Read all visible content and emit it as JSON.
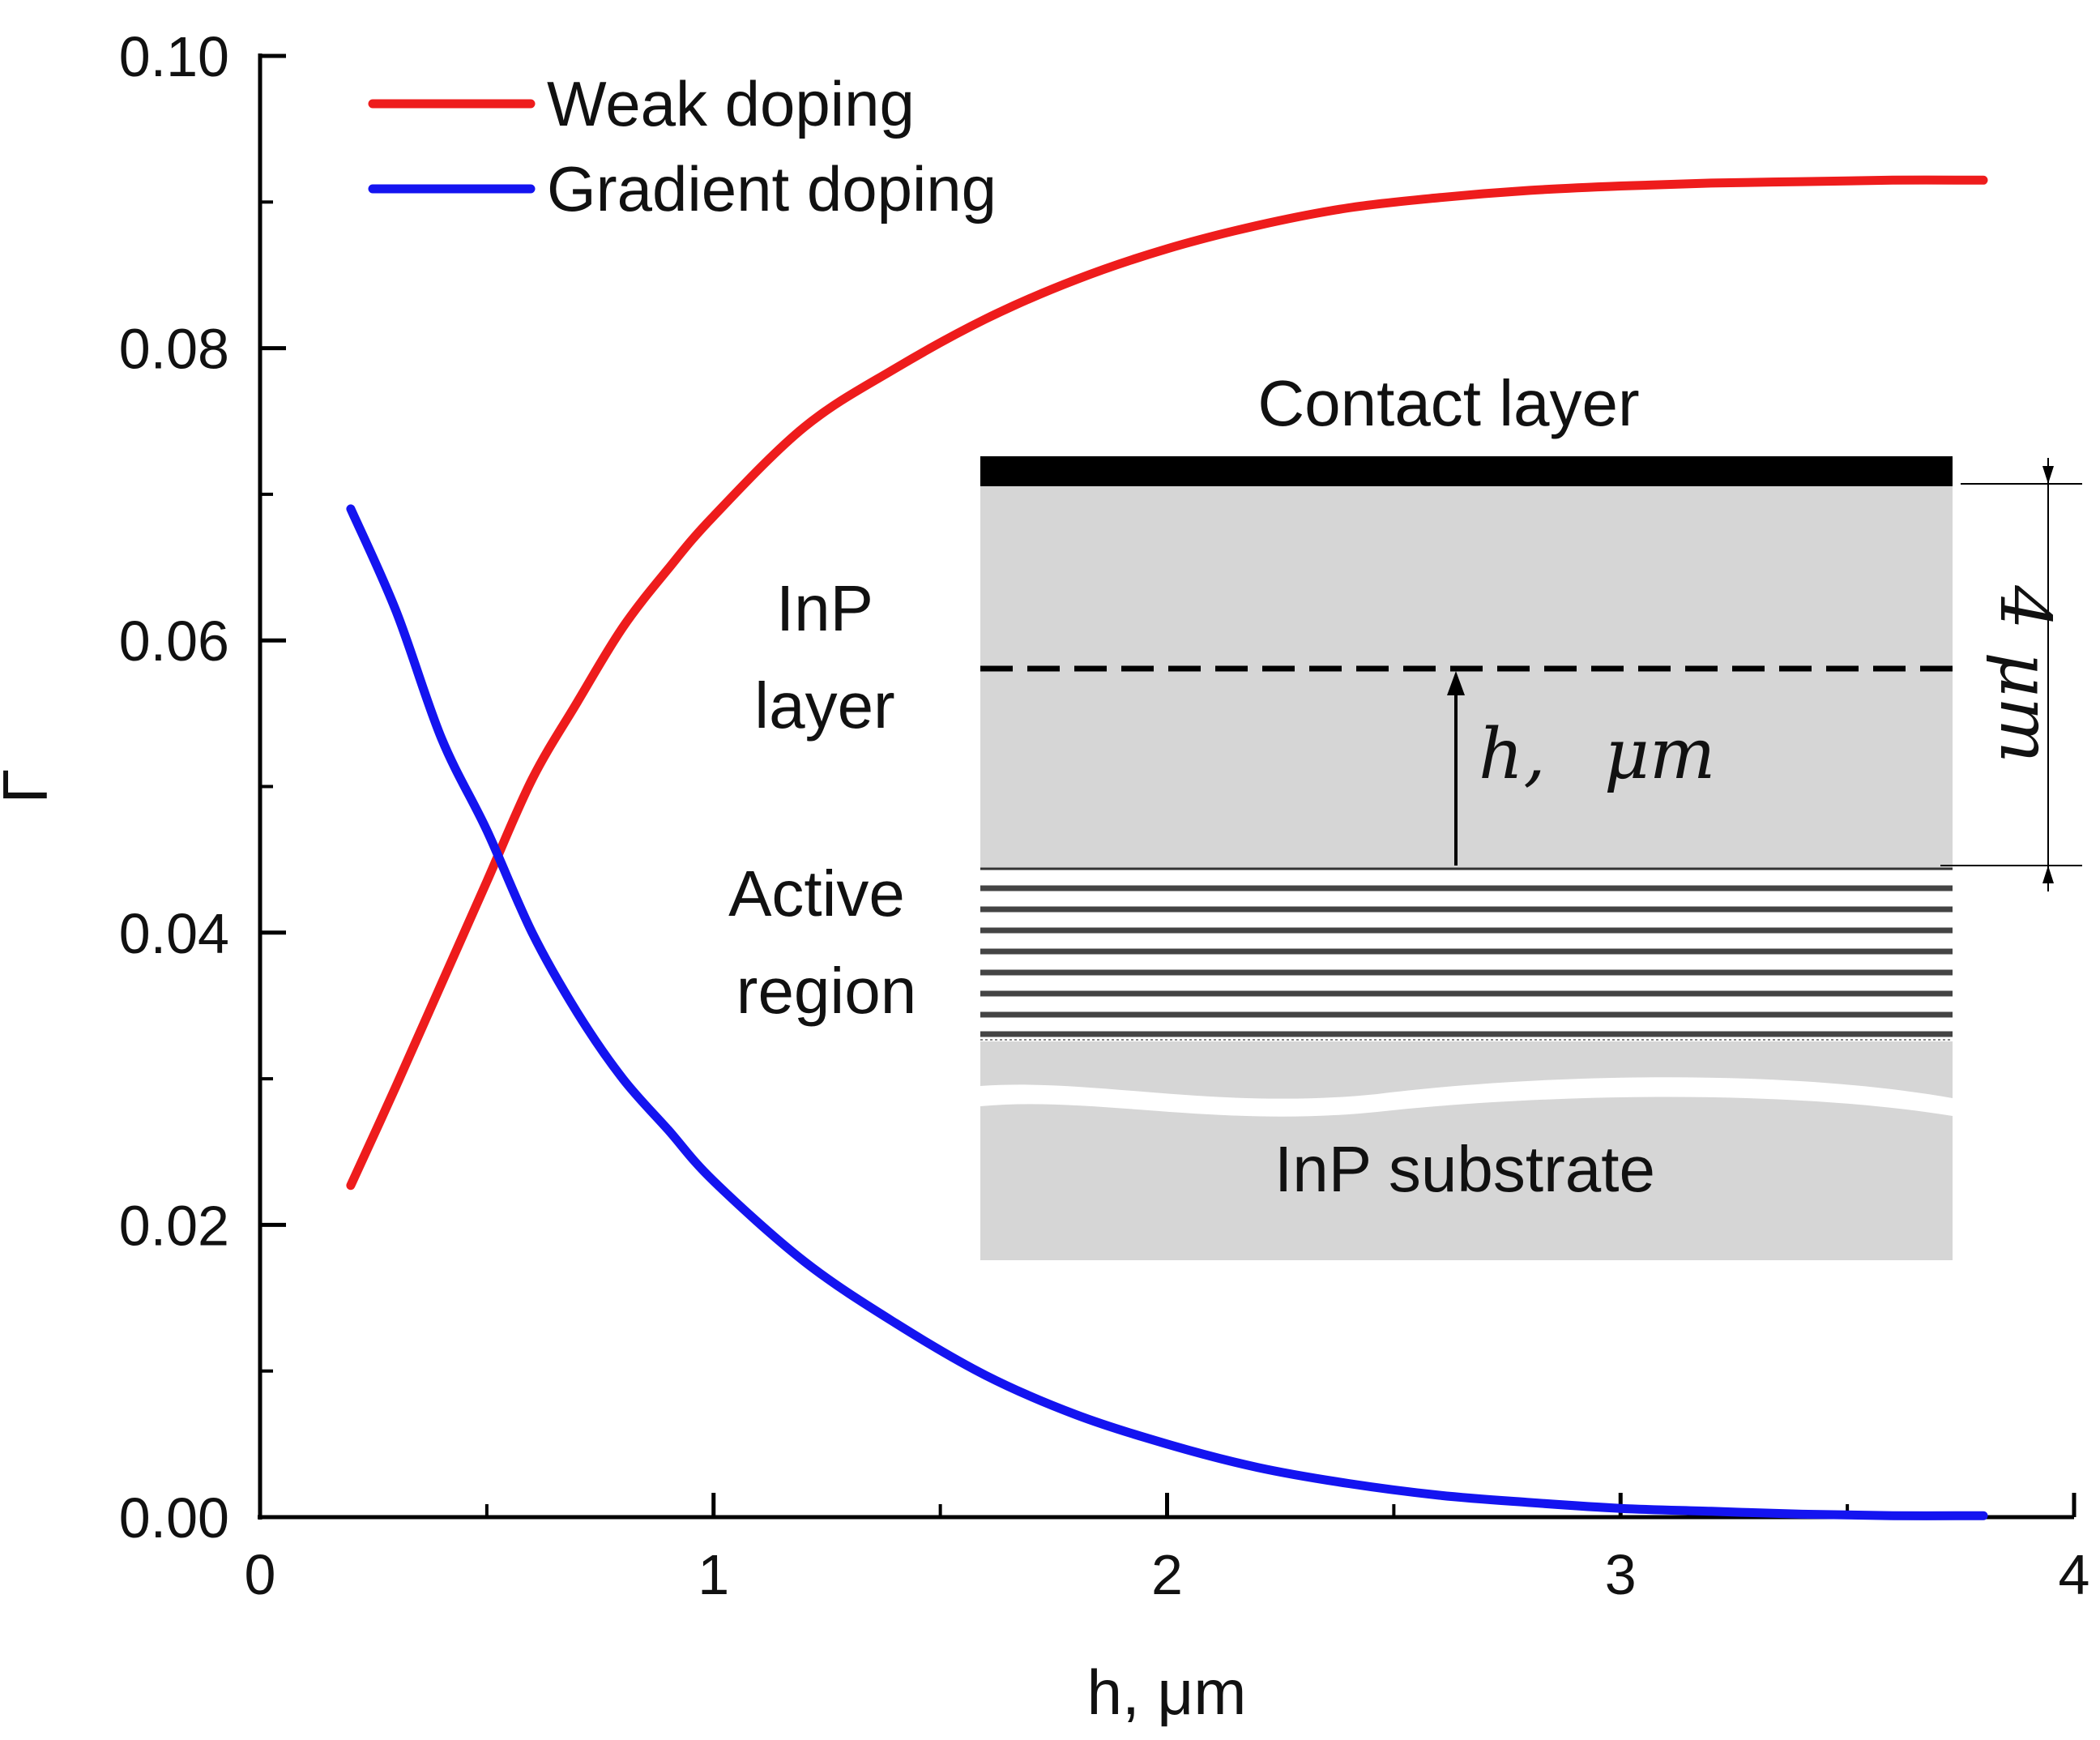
{
  "chart_data": {
    "type": "line",
    "title": "",
    "xlabel": "h, μm",
    "ylabel": "Γ",
    "xlim": [
      0,
      4
    ],
    "ylim": [
      0,
      0.1
    ],
    "x_ticks": [
      "0",
      "1",
      "2",
      "3",
      "4"
    ],
    "y_ticks": [
      "0.00",
      "0.02",
      "0.04",
      "0.06",
      "0.08",
      "0.10"
    ],
    "grid": false,
    "legend_position": "top-left",
    "series": [
      {
        "name": "Weak doping",
        "color": "#ee1c1c",
        "x": [
          0.2,
          0.3,
          0.4,
          0.5,
          0.6,
          0.7,
          0.8,
          0.9,
          1.0,
          1.2,
          1.4,
          1.6,
          1.8,
          2.0,
          2.2,
          2.4,
          2.6,
          2.8,
          3.0,
          3.2,
          3.4,
          3.6,
          3.8
        ],
        "values": [
          0.0227,
          0.0295,
          0.0365,
          0.0435,
          0.0505,
          0.0558,
          0.0609,
          0.0649,
          0.0685,
          0.0746,
          0.0786,
          0.082,
          0.0847,
          0.0868,
          0.0884,
          0.0896,
          0.0903,
          0.0908,
          0.0911,
          0.0913,
          0.0914,
          0.0915,
          0.0915
        ]
      },
      {
        "name": "Gradient doping",
        "color": "#1414f0",
        "x": [
          0.2,
          0.3,
          0.4,
          0.5,
          0.6,
          0.7,
          0.8,
          0.9,
          1.0,
          1.2,
          1.4,
          1.6,
          1.8,
          2.0,
          2.2,
          2.4,
          2.6,
          2.8,
          3.0,
          3.2,
          3.4,
          3.6,
          3.8
        ],
        "values": [
          0.069,
          0.062,
          0.0533,
          0.047,
          0.04,
          0.0345,
          0.03,
          0.0265,
          0.023,
          0.0175,
          0.0133,
          0.0097,
          0.007,
          0.005,
          0.0034,
          0.0023,
          0.0015,
          0.001,
          0.0006,
          0.0004,
          0.0002,
          0.0001,
          0.0001
        ]
      }
    ]
  },
  "inset": {
    "contact_label": "Contact layer",
    "inp_layer_line1": "InP",
    "inp_layer_line2": "layer",
    "active_line1": "Active",
    "active_line2": "region",
    "substrate_label": "InP substrate",
    "h_symbol": "h,",
    "h_unit": "μm",
    "thickness_label": "4 μm"
  }
}
